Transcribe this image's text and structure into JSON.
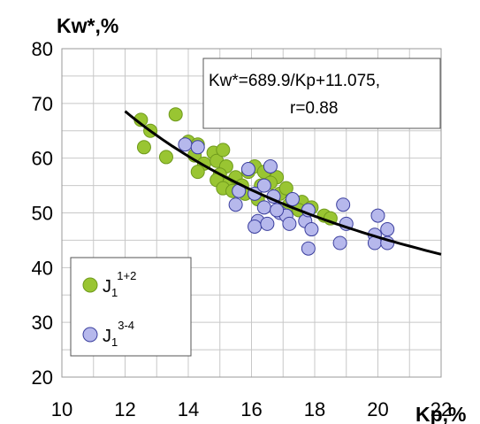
{
  "chart_data": {
    "type": "scatter",
    "ylabel": "Kw*,%",
    "xlabel": "Kp,%",
    "xlim": [
      10,
      22
    ],
    "ylim": [
      20,
      80
    ],
    "xticks": [
      "10",
      "12",
      "14",
      "16",
      "18",
      "20",
      "22"
    ],
    "yticks": [
      "20",
      "30",
      "40",
      "50",
      "60",
      "70",
      "80"
    ],
    "grid": true,
    "legend_position": "bottom-left",
    "annotation": {
      "equation": "Kw*=689.9/Kp+11.075,",
      "r_value": "r=0.88"
    },
    "trend_line": {
      "formula": "689.9/x+11.075",
      "x_range": [
        12,
        22
      ]
    },
    "series": [
      {
        "name": "J1 1+2",
        "legend_base": "J",
        "legend_sub": "1",
        "legend_sup": "1+2",
        "color": "#99c532",
        "stroke": "#6f9a1c",
        "points": [
          [
            12.5,
            67
          ],
          [
            12.8,
            65
          ],
          [
            12.6,
            62
          ],
          [
            13.6,
            68
          ],
          [
            13.3,
            60.2
          ],
          [
            14.0,
            63
          ],
          [
            14.3,
            62.5
          ],
          [
            14.2,
            60.5
          ],
          [
            14.5,
            59
          ],
          [
            14.3,
            57.5
          ],
          [
            14.8,
            61
          ],
          [
            14.9,
            59.5
          ],
          [
            15.1,
            61.5
          ],
          [
            15.2,
            58.5
          ],
          [
            15.0,
            57
          ],
          [
            14.9,
            56
          ],
          [
            15.3,
            55.5
          ],
          [
            15.1,
            54.5
          ],
          [
            15.5,
            56.5
          ],
          [
            15.7,
            55
          ],
          [
            15.9,
            57.5
          ],
          [
            16.1,
            58.5
          ],
          [
            15.8,
            53.5
          ],
          [
            15.4,
            54
          ],
          [
            16.4,
            57.5
          ],
          [
            16.8,
            56.5
          ],
          [
            16.3,
            55
          ],
          [
            16.9,
            53.5
          ],
          [
            16.2,
            52.5
          ],
          [
            17.1,
            54.5
          ],
          [
            17.2,
            51.5
          ],
          [
            17.6,
            52
          ],
          [
            17.5,
            50.5
          ],
          [
            17.9,
            51
          ],
          [
            18.3,
            49.5
          ],
          [
            18.5,
            49
          ],
          [
            16.6,
            55.5
          ]
        ]
      },
      {
        "name": "J1 3-4",
        "legend_base": "J",
        "legend_sub": "1",
        "legend_sup": "3-4",
        "color": "#b6b8ec",
        "stroke": "#3b3f9e",
        "points": [
          [
            13.9,
            62.5
          ],
          [
            14.3,
            62
          ],
          [
            15.9,
            58
          ],
          [
            16.6,
            58.5
          ],
          [
            15.6,
            54
          ],
          [
            16.1,
            53.5
          ],
          [
            15.5,
            51.5
          ],
          [
            16.4,
            55
          ],
          [
            16.7,
            53
          ],
          [
            17.3,
            52.5
          ],
          [
            16.4,
            51
          ],
          [
            16.9,
            50
          ],
          [
            16.2,
            48.5
          ],
          [
            16.1,
            47.5
          ],
          [
            16.5,
            48
          ],
          [
            17.1,
            49.5
          ],
          [
            17.2,
            48
          ],
          [
            17.7,
            48.5
          ],
          [
            17.9,
            47
          ],
          [
            17.8,
            50.5
          ],
          [
            17.8,
            43.5
          ],
          [
            18.8,
            44.5
          ],
          [
            18.9,
            51.5
          ],
          [
            19.0,
            48
          ],
          [
            19.9,
            46
          ],
          [
            19.9,
            44.5
          ],
          [
            20.0,
            49.5
          ],
          [
            20.3,
            47
          ],
          [
            20.3,
            44.5
          ],
          [
            16.8,
            50.5
          ]
        ]
      }
    ]
  }
}
